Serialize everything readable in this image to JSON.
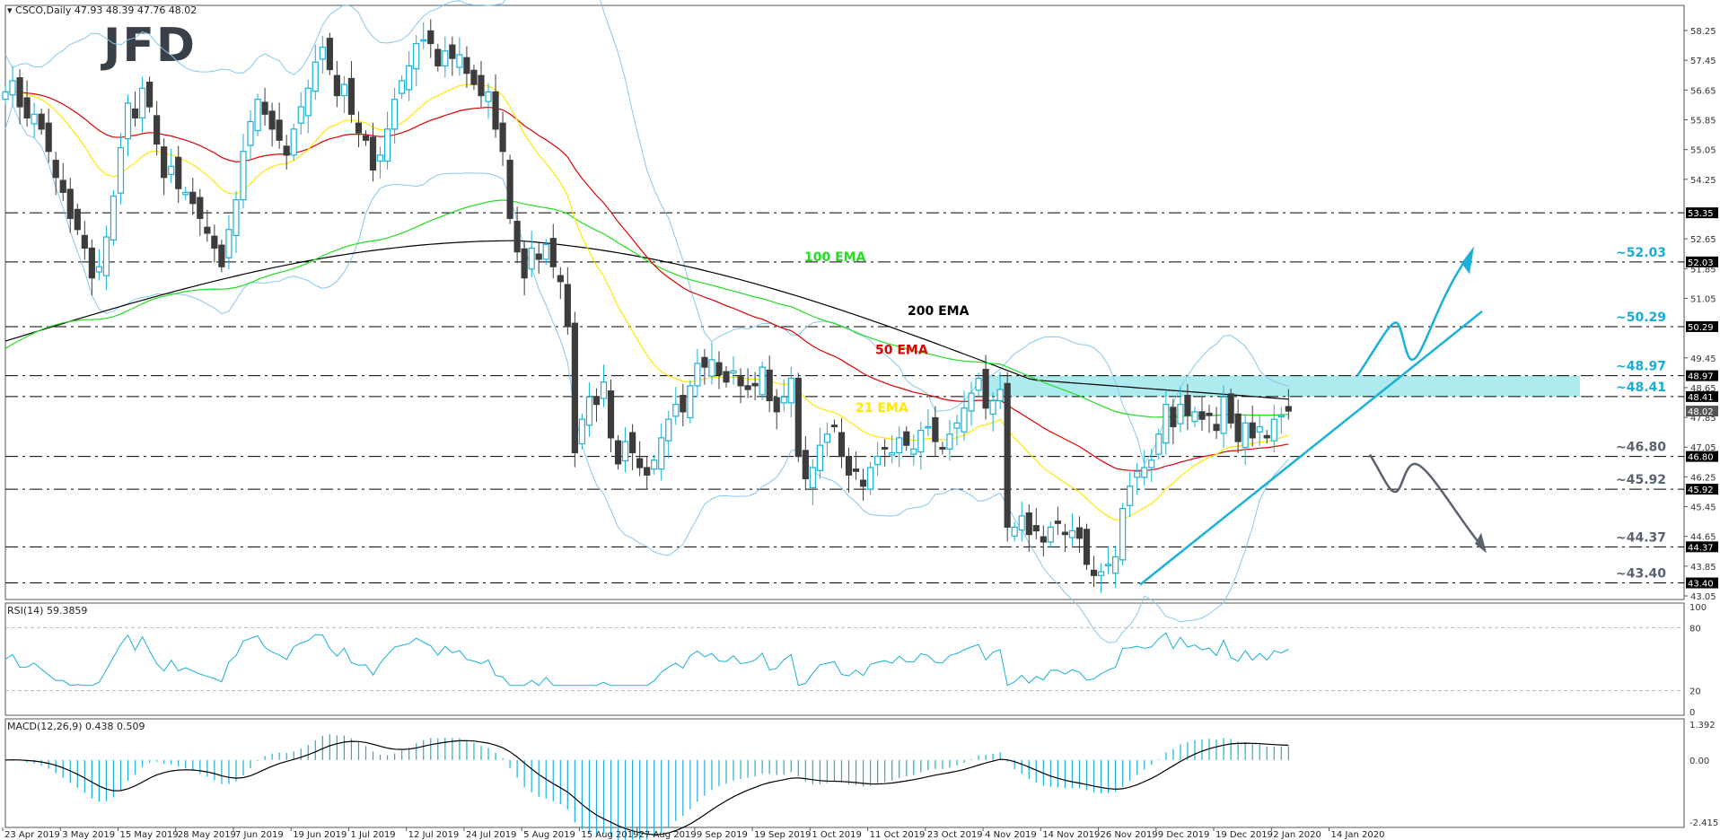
{
  "header": {
    "symbol": "CSCO,Daily",
    "ohlc": "47.93 48.39 47.76 48.02",
    "logo": "JFD"
  },
  "colors": {
    "bull": "#1AB0D8",
    "bear": "#3C3C3C",
    "ema21": "#FFE800",
    "ema50": "#E00000",
    "ema100": "#22DD22",
    "ema200": "#000000",
    "bollinger": "#87C8EE",
    "zone": "#AEEBEE",
    "level_blue": "#1AACD8",
    "level_grey": "#5A6270",
    "rsi": "#1AB0D8",
    "macd_hist": "#1AB0D8",
    "macd_signal": "#000000"
  },
  "chart_data": {
    "type": "candlestick",
    "title": "CSCO,Daily 47.93 48.39 47.76 48.02",
    "x_ticks": [
      "23 Apr 2019",
      "3 May 2019",
      "15 May 2019",
      "28 May 2019",
      "7 Jun 2019",
      "19 Jun 2019",
      "1 Jul 2019",
      "12 Jul 2019",
      "24 Jul 2019",
      "5 Aug 2019",
      "15 Aug 2019",
      "27 Aug 2019",
      "9 Sep 2019",
      "19 Sep 2019",
      "1 Oct 2019",
      "11 Oct 2019",
      "23 Oct 2019",
      "4 Nov 2019",
      "14 Nov 2019",
      "26 Nov 2019",
      "9 Dec 2019",
      "19 Dec 2019",
      "2 Jan 2020",
      "14 Jan 2020"
    ],
    "y_ticks": [
      58.25,
      57.45,
      56.65,
      55.85,
      55.05,
      54.25,
      52.65,
      51.85,
      51.05,
      49.45,
      48.65,
      47.85,
      47.05,
      46.25,
      45.45,
      44.65,
      43.85,
      43.05
    ],
    "ylim": [
      43.05,
      58.9
    ],
    "closes": [
      56.6,
      56.9,
      56.2,
      55.9,
      56.0,
      55.6,
      55.0,
      54.3,
      53.9,
      53.2,
      52.9,
      52.4,
      51.6,
      51.9,
      52.7,
      53.8,
      55.1,
      56.3,
      55.9,
      56.7,
      56.2,
      55.2,
      54.3,
      54.6,
      54.0,
      53.9,
      53.6,
      53.2,
      52.8,
      52.4,
      51.9,
      52.9,
      53.7,
      55.0,
      55.8,
      56.4,
      56.0,
      55.6,
      55.3,
      54.9,
      55.6,
      56.2,
      56.7,
      57.4,
      57.8,
      57.2,
      56.5,
      56.8,
      56.0,
      55.5,
      55.3,
      54.5,
      54.9,
      55.6,
      56.4,
      56.9,
      57.3,
      57.9,
      58.0,
      57.9,
      57.3,
      57.7,
      57.5,
      57.6,
      57.1,
      56.8,
      56.5,
      56.6,
      55.6,
      55.0,
      53.2,
      52.3,
      51.6,
      52.4,
      52.1,
      52.5,
      51.9,
      51.5,
      50.3,
      46.9,
      47.8,
      48.4,
      48.2,
      48.8,
      47.3,
      46.6,
      47.2,
      46.9,
      46.5,
      46.3,
      46.7,
      47.3,
      47.8,
      48.2,
      48.0,
      48.7,
      49.3,
      49.2,
      49.4,
      49.0,
      48.8,
      49.1,
      48.7,
      48.6,
      48.7,
      49.2,
      48.3,
      48.0,
      48.4,
      48.9,
      46.8,
      46.2,
      46.5,
      47.1,
      47.4,
      47.6,
      46.8,
      46.3,
      46.4,
      46.0,
      46.5,
      46.8,
      47.0,
      46.9,
      47.3,
      47.1,
      47.0,
      47.5,
      47.6,
      47.2,
      47.0,
      47.4,
      47.7,
      48.1,
      48.5,
      48.9,
      48.1,
      48.3,
      48.6,
      44.9,
      44.9,
      45.2,
      44.7,
      44.8,
      44.5,
      44.9,
      45.0,
      44.7,
      44.8,
      44.6,
      43.9,
      43.6,
      43.7,
      43.9,
      44.1,
      45.4,
      46.0,
      46.4,
      46.5,
      46.7,
      47.4,
      48.2,
      47.6,
      48.2,
      47.9,
      48.0,
      47.8,
      47.9,
      47.5,
      48.4,
      47.7,
      47.2,
      47.7,
      47.3,
      47.6,
      47.3,
      47.8,
      47.9,
      48.02
    ],
    "levels": [
      53.35,
      52.03,
      50.29,
      48.97,
      48.41,
      46.8,
      45.92,
      44.37,
      43.4
    ],
    "resistance_zone": [
      48.41,
      48.97
    ],
    "last_price": 48.02,
    "indicators": [
      "21 EMA",
      "50 EMA",
      "100 EMA",
      "200 EMA",
      "Bollinger Bands"
    ],
    "rsi": {
      "label": "RSI(14) 59.3859",
      "value": 59.3859,
      "levels": [
        80,
        20
      ],
      "ylim": [
        0,
        100
      ]
    },
    "macd": {
      "label": "MACD(12,26,9) 0.438 0.509",
      "main": 0.438,
      "signal": 0.509,
      "ylim": [
        -2.415,
        1.392
      ]
    }
  },
  "level_labels": [
    {
      "text": "~52.03",
      "price": 52.03,
      "color": "blue"
    },
    {
      "text": "~50.29",
      "price": 50.29,
      "color": "blue"
    },
    {
      "text": "~48.97",
      "price": 48.97,
      "color": "blue"
    },
    {
      "text": "~48.41",
      "price": 48.41,
      "color": "blue"
    },
    {
      "text": "~46.80",
      "price": 46.8,
      "color": "grey"
    },
    {
      "text": "~45.92",
      "price": 45.92,
      "color": "grey"
    },
    {
      "text": "~44.37",
      "price": 44.37,
      "color": "grey"
    },
    {
      "text": "~43.40",
      "price": 43.4,
      "color": "grey"
    }
  ],
  "ema_labels": [
    {
      "text": "100 EMA",
      "x": 896,
      "price": 52.05,
      "color": "ema100"
    },
    {
      "text": "200 EMA",
      "x": 1011,
      "price": 50.6,
      "color": "ema200"
    },
    {
      "text": "50 EMA",
      "x": 975,
      "price": 49.55,
      "color": "ema50"
    },
    {
      "text": "21 EMA",
      "x": 953,
      "price": 48.0,
      "color": "ema21"
    }
  ],
  "rsi_axis": [
    "100",
    "80",
    "20",
    "0"
  ],
  "macd_axis": [
    "1.392",
    "0.00",
    "-2.415"
  ]
}
